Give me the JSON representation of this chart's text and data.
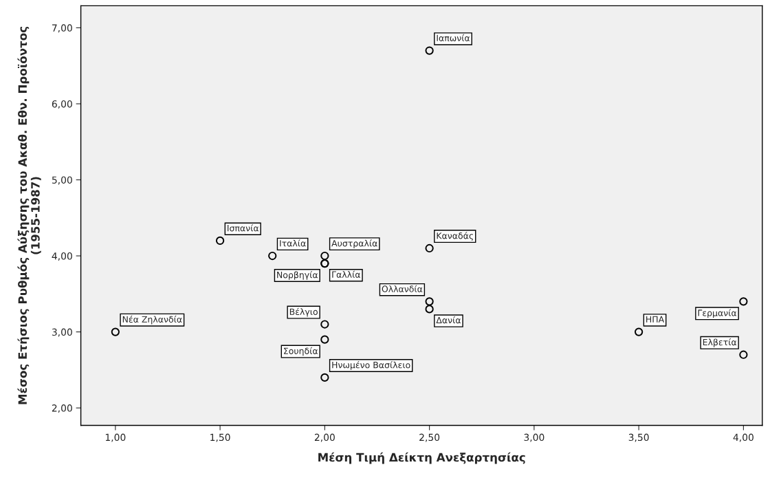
{
  "chart_data": {
    "type": "scatter",
    "xlabel": "Μέση Τιμή Δείκτη Ανεξαρτησίας",
    "ylabel": "Μέσος Ετήσιος Ρυθμός Αύξησης του Ακαθ. Εθν. Προϊόντος\n(1955-1987)",
    "x": [
      2.5,
      1.5,
      1.75,
      2.0,
      2.0,
      2.0,
      2.5,
      2.5,
      2.5,
      1.0,
      2.0,
      2.0,
      2.0,
      3.5,
      4.0,
      4.0
    ],
    "series": [
      {
        "color": "#000000",
        "values": [
          6.7,
          4.2,
          4.0,
          4.0,
          3.9,
          3.9,
          4.1,
          3.4,
          3.3,
          3.0,
          3.1,
          2.9,
          2.4,
          3.0,
          3.4,
          2.7
        ]
      }
    ],
    "annotations": [
      {
        "text": "Ιαπωνία",
        "x": 2.5,
        "y": 6.7
      },
      {
        "text": "Ισπανία",
        "x": 1.5,
        "y": 4.2
      },
      {
        "text": "Ιταλία",
        "x": 1.75,
        "y": 4.0
      },
      {
        "text": "Αυστραλία",
        "x": 2.0,
        "y": 4.0
      },
      {
        "text": "Νορβηγία",
        "x": 2.0,
        "y": 3.9
      },
      {
        "text": "Γαλλία",
        "x": 2.0,
        "y": 3.9
      },
      {
        "text": "Καναδάς",
        "x": 2.5,
        "y": 4.1
      },
      {
        "text": "Ολλανδία",
        "x": 2.5,
        "y": 3.4
      },
      {
        "text": "Δανία",
        "x": 2.5,
        "y": 3.3
      },
      {
        "text": "Νέα Ζηλανδία",
        "x": 1.0,
        "y": 3.0
      },
      {
        "text": "Βέλγιο",
        "x": 2.0,
        "y": 3.1
      },
      {
        "text": "Σουηδία",
        "x": 2.0,
        "y": 2.9
      },
      {
        "text": "Ηνωμένο Βασίλειο",
        "x": 2.0,
        "y": 2.4
      },
      {
        "text": "ΗΠΑ",
        "x": 3.5,
        "y": 3.0
      },
      {
        "text": "Γερμανία",
        "x": 4.0,
        "y": 3.4
      },
      {
        "text": "Ελβετία",
        "x": 4.0,
        "y": 2.7
      }
    ],
    "xlim": [
      0.835,
      4.09
    ],
    "ylim": [
      1.77,
      7.29
    ],
    "xticks": [
      {
        "value": 1.0,
        "label": "1,00"
      },
      {
        "value": 1.5,
        "label": "1,50"
      },
      {
        "value": 2.0,
        "label": "2,00"
      },
      {
        "value": 2.5,
        "label": "2,50"
      },
      {
        "value": 3.0,
        "label": "3,00"
      },
      {
        "value": 3.5,
        "label": "3,50"
      },
      {
        "value": 4.0,
        "label": "4,00"
      }
    ],
    "yticks": [
      {
        "value": 2.0,
        "label": "2,00"
      },
      {
        "value": 3.0,
        "label": "3,00"
      },
      {
        "value": 4.0,
        "label": "4,00"
      },
      {
        "value": 5.0,
        "label": "5,00"
      },
      {
        "value": 6.0,
        "label": "6,00"
      },
      {
        "value": 7.0,
        "label": "7,00"
      }
    ],
    "marker": "circle",
    "grid": false,
    "legend": false
  }
}
